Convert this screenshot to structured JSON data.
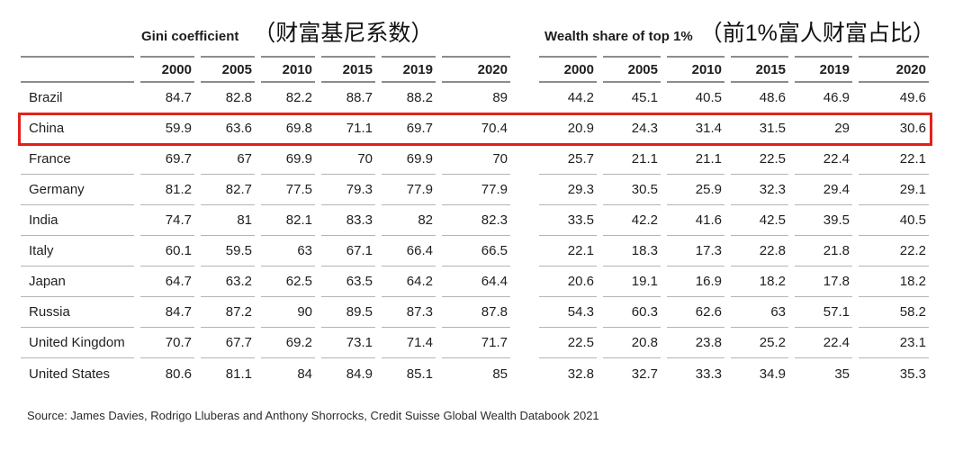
{
  "header": {
    "gini_title_en": "Gini coefficient",
    "gini_title_zh": "（财富基尼系数）",
    "wealth_title_en": "Wealth share of top 1%",
    "wealth_title_zh": "（前1%富人财富占比）"
  },
  "chart_data": {
    "type": "table",
    "title_left": "Gini coefficient （财富基尼系数）",
    "title_right": "Wealth share of top 1% （前1%富人财富占比）",
    "columns": [
      "2000",
      "2005",
      "2010",
      "2015",
      "2019",
      "2020"
    ],
    "highlighted_row": "China",
    "rows": [
      {
        "country": "Brazil",
        "gini": [
          84.7,
          82.8,
          82.2,
          88.7,
          88.2,
          89
        ],
        "wealth_top1": [
          44.2,
          45.1,
          40.5,
          48.6,
          46.9,
          49.6
        ]
      },
      {
        "country": "China",
        "gini": [
          59.9,
          63.6,
          69.8,
          71.1,
          69.7,
          70.4
        ],
        "wealth_top1": [
          20.9,
          24.3,
          31.4,
          31.5,
          29,
          30.6
        ]
      },
      {
        "country": "France",
        "gini": [
          69.7,
          67,
          69.9,
          70,
          69.9,
          70
        ],
        "wealth_top1": [
          25.7,
          21.1,
          21.1,
          22.5,
          22.4,
          22.1
        ]
      },
      {
        "country": "Germany",
        "gini": [
          81.2,
          82.7,
          77.5,
          79.3,
          77.9,
          77.9
        ],
        "wealth_top1": [
          29.3,
          30.5,
          25.9,
          32.3,
          29.4,
          29.1
        ]
      },
      {
        "country": "India",
        "gini": [
          74.7,
          81,
          82.1,
          83.3,
          82,
          82.3
        ],
        "wealth_top1": [
          33.5,
          42.2,
          41.6,
          42.5,
          39.5,
          40.5
        ]
      },
      {
        "country": "Italy",
        "gini": [
          60.1,
          59.5,
          63,
          67.1,
          66.4,
          66.5
        ],
        "wealth_top1": [
          22.1,
          18.3,
          17.3,
          22.8,
          21.8,
          22.2
        ]
      },
      {
        "country": "Japan",
        "gini": [
          64.7,
          63.2,
          62.5,
          63.5,
          64.2,
          64.4
        ],
        "wealth_top1": [
          20.6,
          19.1,
          16.9,
          18.2,
          17.8,
          18.2
        ]
      },
      {
        "country": "Russia",
        "gini": [
          84.7,
          87.2,
          90,
          89.5,
          87.3,
          87.8
        ],
        "wealth_top1": [
          54.3,
          60.3,
          62.6,
          63,
          57.1,
          58.2
        ]
      },
      {
        "country": "United Kingdom",
        "gini": [
          70.7,
          67.7,
          69.2,
          73.1,
          71.4,
          71.7
        ],
        "wealth_top1": [
          22.5,
          20.8,
          23.8,
          25.2,
          22.4,
          23.1
        ]
      },
      {
        "country": "United States",
        "gini": [
          80.6,
          81.1,
          84,
          84.9,
          85.1,
          85
        ],
        "wealth_top1": [
          32.8,
          32.7,
          33.3,
          34.9,
          35,
          35.3
        ]
      }
    ]
  },
  "source": "Source: James Davies, Rodrigo Lluberas and Anthony Shorrocks, Credit Suisse Global Wealth Databook 2021",
  "colors": {
    "highlight_border": "#e32119",
    "header_rule": "#8c8c8c",
    "row_rule": "#b4b4b4",
    "text": "#1f1f1f"
  }
}
